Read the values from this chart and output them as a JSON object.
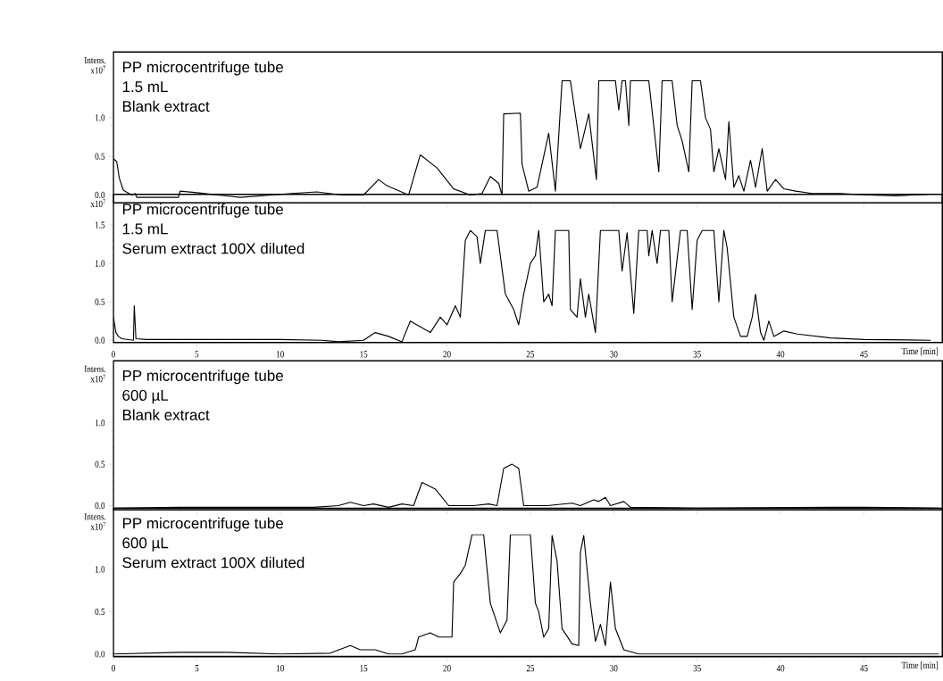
{
  "chart_data": [
    {
      "type": "line",
      "color": "#000000",
      "ylabel": "Intens. x10$^{7}$",
      "tick_labels": "y",
      "annotations": [
        "PP microcentrifuge tube",
        "1.5 mL",
        "Blank extract"
      ],
      "xlim": [
        0,
        49.7
      ],
      "ylim": [
        -0.1,
        1.85
      ],
      "xticks": [
        0,
        5,
        10,
        15,
        20,
        25,
        30,
        35,
        40,
        45
      ],
      "yticks": [
        {
          "value": 0,
          "label": "0.0"
        },
        {
          "value": 0.5,
          "label": "0.5"
        },
        {
          "value": 1,
          "label": "1.0"
        }
      ],
      "x": [
        0,
        0.2,
        0.35,
        0.6,
        1.1,
        1.3,
        1.4,
        2,
        3.9,
        4.0,
        5,
        7.6,
        10.7,
        12.2,
        13.7,
        15,
        15.9,
        16.4,
        17.7,
        18.4,
        19.4,
        20.4,
        21.4,
        22.1,
        22.6,
        23.1,
        23.3,
        23.4,
        24.4,
        24.5,
        24.9,
        25.4,
        26.1,
        26.5,
        26.9,
        27.4,
        28.0,
        28.5,
        28.96,
        29.1,
        30.1,
        30.3,
        30.5,
        30.7,
        30.9,
        31.0,
        32.1,
        32.7,
        32.9,
        33.5,
        33.8,
        34.1,
        34.5,
        34.7,
        35.2,
        35.5,
        35.8,
        36.0,
        36.3,
        36.7,
        36.9,
        37.2,
        37.5,
        37.8,
        38.2,
        38.5,
        38.9,
        39.2,
        39.7,
        40.2,
        40.9,
        41.9,
        43.6,
        45.2,
        46.9,
        48.9
      ],
      "values": [
        0.47,
        0.43,
        0.22,
        0.06,
        0.0,
        0.02,
        -0.03,
        -0.03,
        -0.03,
        0.05,
        0.03,
        -0.03,
        0.02,
        0.04,
        0.0,
        0.0,
        0.2,
        0.12,
        0.0,
        0.52,
        0.35,
        0.08,
        0.0,
        0.02,
        0.24,
        0.15,
        0.0,
        1.05,
        1.06,
        0.4,
        0.05,
        0.1,
        0.8,
        0.05,
        1.48,
        1.48,
        0.6,
        1.05,
        0.2,
        1.48,
        1.48,
        1.1,
        1.48,
        1.48,
        0.9,
        1.48,
        1.48,
        0.3,
        1.48,
        1.48,
        0.9,
        0.7,
        0.3,
        1.48,
        1.48,
        1.0,
        0.85,
        0.3,
        0.6,
        0.2,
        0.95,
        0.1,
        0.25,
        0.05,
        0.45,
        0.1,
        0.6,
        0.05,
        0.2,
        0.08,
        0.05,
        0.02,
        0.02,
        0.0,
        -0.01,
        0.01
      ]
    },
    {
      "type": "line",
      "color": "#000000",
      "ylabel": "x10$^{7}$",
      "xlabel": "Time [min]",
      "annotations": [
        "PP microcentrifuge tube",
        "1.5 mL",
        "Serum extract 100X diluted"
      ],
      "xlim": [
        0,
        49.7
      ],
      "ylim": [
        -0.03,
        1.9
      ],
      "xticks": [
        0,
        5,
        10,
        15,
        20,
        25,
        30,
        35,
        40,
        45
      ],
      "yticks": [
        {
          "value": 0,
          "label": "0.0"
        },
        {
          "value": 0.5,
          "label": "0.5"
        },
        {
          "value": 1,
          "label": "1.0"
        },
        {
          "value": 1.5,
          "label": "1.5"
        }
      ],
      "x": [
        0,
        0.15,
        0.3,
        0.5,
        1.2,
        1.25,
        1.35,
        2,
        5,
        10,
        12.5,
        13.5,
        15,
        15.7,
        16.5,
        17.3,
        17.8,
        19,
        19.6,
        20,
        20.5,
        20.8,
        21.1,
        21.4,
        21.8,
        22,
        22.3,
        23,
        23.5,
        24,
        24.3,
        24.6,
        25,
        25.3,
        25.5,
        25.8,
        26.1,
        26.3,
        26.5,
        27.3,
        27.4,
        27.8,
        28.0,
        28.3,
        28.5,
        28.9,
        29.2,
        30.3,
        30.5,
        30.8,
        31.2,
        31.5,
        32.0,
        32.1,
        32.3,
        32.6,
        32.8,
        33.3,
        33.5,
        34.0,
        34.4,
        34.7,
        35.0,
        35.3,
        36.0,
        36.3,
        36.6,
        36.8,
        37.2,
        37.6,
        38,
        38.3,
        38.5,
        38.8,
        39.0,
        39.3,
        39.6,
        40.2,
        41,
        43,
        45,
        49
      ],
      "values": [
        0.3,
        0.1,
        0.05,
        0.02,
        0.0,
        0.45,
        0.02,
        0.01,
        0.01,
        0.01,
        0.0,
        -0.02,
        0.0,
        0.1,
        0.05,
        -0.02,
        0.25,
        0.1,
        0.3,
        0.2,
        0.45,
        0.3,
        1.3,
        1.43,
        1.35,
        1.0,
        1.43,
        1.43,
        0.6,
        0.4,
        0.2,
        0.6,
        1.0,
        1.1,
        1.43,
        0.5,
        0.6,
        0.45,
        1.43,
        1.43,
        0.4,
        0.3,
        0.8,
        0.3,
        0.6,
        0.1,
        1.43,
        1.43,
        0.9,
        1.4,
        0.35,
        1.43,
        1.43,
        1.1,
        1.43,
        1.0,
        1.43,
        1.43,
        0.5,
        1.43,
        1.43,
        0.4,
        1.3,
        1.43,
        1.43,
        0.5,
        1.43,
        1.2,
        0.3,
        0.05,
        0.05,
        0.3,
        0.6,
        0.1,
        0.0,
        0.25,
        0.05,
        0.12,
        0.08,
        0.03,
        0.01,
        0.0
      ]
    },
    {
      "type": "line",
      "color": "#000000",
      "ylabel": "Intens. x10$^{7}$",
      "tick_labels": "y",
      "annotations": [
        "PP microcentrifuge tube",
        "600 µL",
        "Blank extract"
      ],
      "xlim": [
        0,
        49.7
      ],
      "ylim": [
        -0.05,
        1.75
      ],
      "xticks": [
        0,
        5,
        10,
        15,
        20,
        25,
        30,
        35,
        40,
        45
      ],
      "yticks": [
        {
          "value": 0,
          "label": "0.0"
        },
        {
          "value": 0.5,
          "label": "0.5"
        },
        {
          "value": 1,
          "label": "1.0"
        }
      ],
      "x": [
        0,
        4,
        12,
        13.5,
        14.2,
        15,
        15.6,
        16.5,
        17.3,
        18,
        18.5,
        19.3,
        20.1,
        21.6,
        22.5,
        23.0,
        23.4,
        23.9,
        24.3,
        24.6,
        26,
        27.5,
        28.0,
        28.8,
        29.1,
        29.5,
        29.8,
        30.6,
        31.0,
        35,
        43,
        45,
        49.5
      ],
      "values": [
        -0.03,
        -0.02,
        -0.02,
        0.0,
        0.04,
        0.0,
        0.02,
        -0.02,
        0.02,
        0.0,
        0.28,
        0.2,
        0.0,
        0.0,
        0.02,
        0.0,
        0.45,
        0.5,
        0.45,
        0.0,
        0.0,
        0.03,
        0.0,
        0.07,
        0.05,
        0.1,
        0.0,
        0.05,
        -0.02,
        -0.03,
        -0.02,
        -0.02,
        -0.03
      ]
    },
    {
      "type": "line",
      "color": "#000000",
      "ylabel": "Intens. x10$^{7}$",
      "xlabel": "Time [min]",
      "annotations": [
        "PP microcentrifuge tube",
        "600 µL",
        "Serum extract 100X diluted"
      ],
      "xlim": [
        0,
        49.7
      ],
      "ylim": [
        -0.03,
        1.72
      ],
      "xticks": [
        0,
        5,
        10,
        15,
        20,
        25,
        30,
        35,
        40,
        45
      ],
      "yticks": [
        {
          "value": 0,
          "label": "0.0"
        },
        {
          "value": 0.5,
          "label": "0.5"
        },
        {
          "value": 1,
          "label": "1.0"
        }
      ],
      "x": [
        0,
        4,
        6.8,
        10,
        13,
        14.2,
        14.8,
        15.7,
        16.5,
        17.3,
        18.1,
        18.3,
        19,
        19.5,
        20.3,
        20.4,
        20.8,
        21.1,
        21.5,
        22.2,
        22.6,
        23.2,
        23.6,
        23.8,
        25.0,
        25.3,
        25.5,
        25.8,
        26.1,
        26.3,
        26.6,
        26.9,
        27.5,
        27.9,
        28.0,
        28.2,
        28.6,
        28.9,
        29.2,
        29.5,
        29.8,
        30.1,
        30.6,
        31.5,
        35,
        40,
        49.5
      ],
      "values": [
        0.0,
        0.02,
        0.02,
        0.0,
        0.01,
        0.1,
        0.05,
        0.05,
        0.0,
        0.0,
        0.05,
        0.2,
        0.25,
        0.2,
        0.2,
        0.85,
        0.95,
        1.05,
        1.41,
        1.41,
        0.6,
        0.25,
        0.4,
        1.41,
        1.41,
        0.6,
        0.5,
        0.2,
        0.3,
        1.4,
        1.1,
        0.3,
        0.12,
        0.1,
        1.2,
        1.4,
        0.6,
        0.15,
        0.35,
        0.1,
        0.85,
        0.3,
        0.05,
        0.0,
        0.0,
        0.0,
        0.0
      ]
    }
  ]
}
